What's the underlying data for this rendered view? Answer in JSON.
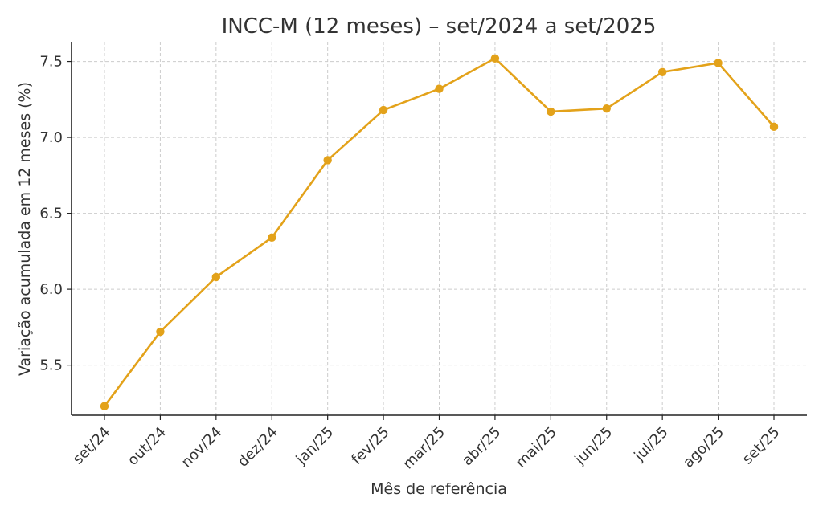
{
  "chart_data": {
    "type": "line",
    "title": "INCC-M (12 meses) – set/2024 a set/2025",
    "xlabel": "Mês de referência",
    "ylabel": "Variação acumulada em 12 meses (%)",
    "categories": [
      "set/24",
      "out/24",
      "nov/24",
      "dez/24",
      "jan/25",
      "fev/25",
      "mar/25",
      "abr/25",
      "mai/25",
      "jun/25",
      "jul/25",
      "ago/25",
      "set/25"
    ],
    "series": [
      {
        "values": [
          5.23,
          5.72,
          6.08,
          6.34,
          6.85,
          7.18,
          7.32,
          7.52,
          7.17,
          7.19,
          7.43,
          7.49,
          7.07
        ]
      }
    ],
    "yticks": [
      "5.5",
      "6.0",
      "6.5",
      "7.0",
      "7.5"
    ],
    "ylim": [
      5.17,
      7.63
    ],
    "grid": true,
    "legend": "none",
    "line_color": "#E3A21A"
  }
}
